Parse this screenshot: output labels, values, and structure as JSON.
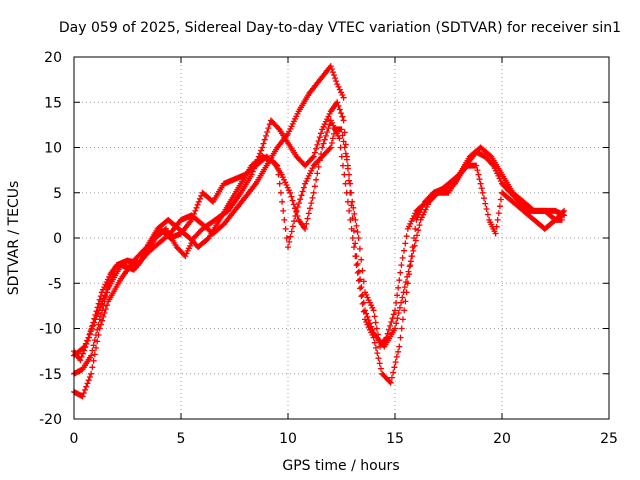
{
  "chart_data": {
    "type": "scatter",
    "title": "Day 059 of 2025, Sidereal Day-to-day VTEC variation (SDTVAR) for receiver sin1",
    "xlabel": "GPS time / hours",
    "ylabel": "SDTVAR / TECUs",
    "xlim": [
      0,
      25
    ],
    "ylim": [
      -20,
      20
    ],
    "xticks": [
      0,
      5,
      10,
      15,
      20,
      25
    ],
    "yticks": [
      -20,
      -15,
      -10,
      -5,
      0,
      5,
      10,
      15,
      20
    ],
    "grid": true,
    "marker": "plus",
    "color": "#ff0000",
    "series": [
      {
        "values": [
          [
            0,
            -12.5
          ],
          [
            0.3,
            -13.5
          ],
          [
            0.7,
            -11
          ],
          [
            1,
            -8.5
          ],
          [
            1.3,
            -6
          ],
          [
            1.7,
            -4
          ],
          [
            2,
            -3
          ],
          [
            2.5,
            -2.5
          ],
          [
            3,
            -2.8
          ],
          [
            3.5,
            -1.5
          ],
          [
            4,
            -0.5
          ],
          [
            4.5,
            0.5
          ],
          [
            5,
            2
          ],
          [
            5.5,
            2.5
          ],
          [
            6,
            1.5
          ],
          [
            6.5,
            0.5
          ],
          [
            7,
            1.5
          ],
          [
            7.5,
            3
          ],
          [
            8,
            4.5
          ],
          [
            8.5,
            6
          ],
          [
            9,
            8
          ],
          [
            9.5,
            10
          ],
          [
            10,
            11.5
          ],
          [
            10.5,
            14
          ],
          [
            11,
            16
          ],
          [
            11.5,
            17.5
          ],
          [
            12,
            19
          ],
          [
            12.3,
            17
          ],
          [
            12.6,
            15.5
          ]
        ]
      },
      {
        "values": [
          [
            0,
            -15
          ],
          [
            0.4,
            -14.5
          ],
          [
            0.8,
            -13
          ],
          [
            1.2,
            -9
          ],
          [
            1.6,
            -5.5
          ],
          [
            2.2,
            -3
          ],
          [
            2.8,
            -3.5
          ],
          [
            3.3,
            -2
          ],
          [
            3.8,
            0
          ],
          [
            4.3,
            1
          ],
          [
            4.8,
            -1
          ],
          [
            5.2,
            -2
          ],
          [
            5.6,
            0
          ],
          [
            6,
            1
          ],
          [
            6.6,
            2
          ],
          [
            7.2,
            3
          ],
          [
            7.8,
            5
          ],
          [
            8.3,
            7
          ],
          [
            8.8,
            10
          ],
          [
            9.2,
            13
          ],
          [
            9.6,
            12
          ],
          [
            10,
            10.5
          ],
          [
            10.4,
            9
          ],
          [
            10.8,
            8
          ],
          [
            11.2,
            9
          ],
          [
            11.6,
            12
          ],
          [
            12,
            14
          ],
          [
            12.3,
            15
          ],
          [
            12.6,
            13
          ],
          [
            12.9,
            5
          ],
          [
            13.2,
            -2
          ],
          [
            13.6,
            -8
          ],
          [
            14,
            -10.5
          ],
          [
            14.5,
            -12
          ],
          [
            15,
            -10
          ],
          [
            15.4,
            -6
          ],
          [
            15.8,
            -2
          ],
          [
            16.2,
            2
          ],
          [
            16.6,
            4
          ],
          [
            17,
            5
          ],
          [
            17.5,
            5
          ],
          [
            18,
            7
          ],
          [
            18.5,
            9
          ],
          [
            19,
            10
          ],
          [
            19.5,
            9
          ],
          [
            20,
            7
          ],
          [
            20.5,
            5
          ],
          [
            21,
            4
          ],
          [
            21.5,
            3
          ],
          [
            22,
            3
          ],
          [
            22.5,
            2
          ],
          [
            22.8,
            2
          ]
        ]
      },
      {
        "values": [
          [
            0,
            -17
          ],
          [
            0.4,
            -17.5
          ],
          [
            0.8,
            -15
          ],
          [
            1.2,
            -10
          ],
          [
            1.6,
            -7
          ],
          [
            2.2,
            -4.5
          ],
          [
            2.8,
            -2.5
          ],
          [
            3.4,
            -1
          ],
          [
            3.9,
            1
          ],
          [
            4.4,
            2
          ],
          [
            4.9,
            1
          ],
          [
            5.4,
            0
          ],
          [
            5.8,
            -1
          ],
          [
            6.3,
            0
          ],
          [
            6.8,
            2
          ],
          [
            7.3,
            4
          ],
          [
            7.8,
            6
          ],
          [
            8.3,
            8
          ],
          [
            8.8,
            9
          ],
          [
            9.3,
            8.5
          ],
          [
            9.7,
            7
          ],
          [
            10.1,
            5
          ],
          [
            10.5,
            2
          ],
          [
            10.8,
            1
          ],
          [
            11.2,
            5
          ],
          [
            11.6,
            10
          ],
          [
            12,
            13
          ],
          [
            12.4,
            11
          ],
          [
            12.8,
            4
          ],
          [
            13.2,
            -3
          ],
          [
            13.6,
            -9
          ],
          [
            14,
            -11
          ],
          [
            14.4,
            -15
          ],
          [
            14.8,
            -16
          ],
          [
            15.2,
            -12
          ],
          [
            15.6,
            -5
          ],
          [
            16,
            2
          ],
          [
            16.4,
            4
          ],
          [
            16.8,
            5
          ],
          [
            17.3,
            5.5
          ],
          [
            17.8,
            6
          ],
          [
            18.3,
            8
          ],
          [
            18.8,
            9.5
          ],
          [
            19.2,
            9
          ],
          [
            19.6,
            8
          ],
          [
            20,
            6
          ],
          [
            20.4,
            5
          ],
          [
            20.8,
            4
          ],
          [
            21.2,
            3
          ],
          [
            21.6,
            3
          ],
          [
            22,
            3
          ],
          [
            22.5,
            3
          ],
          [
            22.9,
            2.5
          ]
        ]
      },
      {
        "values": [
          [
            0,
            -13
          ],
          [
            0.5,
            -12
          ],
          [
            1,
            -9
          ],
          [
            1.5,
            -6
          ],
          [
            2,
            -3
          ],
          [
            2.5,
            -2.5
          ],
          [
            3,
            -3
          ],
          [
            3.5,
            -1
          ],
          [
            4,
            1
          ],
          [
            4.5,
            0
          ],
          [
            5,
            0.5
          ],
          [
            5.5,
            2
          ],
          [
            6,
            5
          ],
          [
            6.5,
            4
          ],
          [
            7,
            6
          ],
          [
            7.5,
            6.5
          ],
          [
            8,
            7
          ],
          [
            8.5,
            8
          ],
          [
            9,
            9
          ],
          [
            9.5,
            8
          ],
          [
            10,
            -1
          ],
          [
            10.4,
            3
          ],
          [
            10.8,
            6
          ],
          [
            11.2,
            8
          ],
          [
            11.6,
            9
          ],
          [
            12,
            10
          ],
          [
            12.2,
            12
          ],
          [
            12.5,
            12
          ],
          [
            12.8,
            8
          ],
          [
            13,
            4
          ],
          [
            13.3,
            0
          ],
          [
            13.6,
            -6
          ],
          [
            14,
            -8
          ],
          [
            14.3,
            -12
          ],
          [
            14.6,
            -11
          ],
          [
            15,
            -8
          ],
          [
            15.3,
            -3
          ],
          [
            15.6,
            1
          ],
          [
            16,
            3
          ],
          [
            16.5,
            4
          ],
          [
            17,
            5
          ],
          [
            17.5,
            6
          ],
          [
            18,
            7
          ],
          [
            18.4,
            8
          ],
          [
            18.8,
            8
          ],
          [
            19.1,
            5
          ],
          [
            19.4,
            2
          ],
          [
            19.7,
            0.5
          ],
          [
            20,
            5
          ],
          [
            20.5,
            4
          ],
          [
            21,
            3
          ],
          [
            21.5,
            2
          ],
          [
            22,
            1
          ],
          [
            22.5,
            2
          ],
          [
            22.9,
            3
          ]
        ]
      }
    ]
  }
}
